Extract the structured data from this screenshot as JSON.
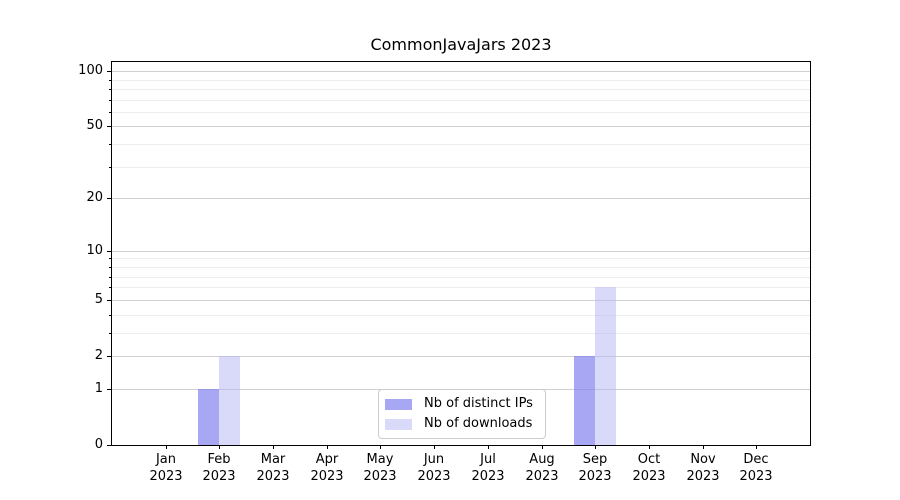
{
  "chart_data": {
    "type": "bar",
    "title": "CommonJavaJars 2023",
    "categories": [
      "Jan 2023",
      "Feb 2023",
      "Mar 2023",
      "Apr 2023",
      "May 2023",
      "Jun 2023",
      "Jul 2023",
      "Aug 2023",
      "Sep 2023",
      "Oct 2023",
      "Nov 2023",
      "Dec 2023"
    ],
    "series": [
      {
        "name": "Nb of distinct IPs",
        "color": "#8282f0b3",
        "values": [
          0,
          1,
          0,
          0,
          0,
          0,
          0,
          0,
          2,
          0,
          0,
          0
        ]
      },
      {
        "name": "Nb of downloads",
        "color": "#b4b4f580",
        "values": [
          0,
          2,
          0,
          0,
          0,
          0,
          0,
          0,
          6,
          0,
          0,
          0
        ]
      }
    ],
    "xlabel": "",
    "ylabel": "",
    "y_scale": "log1p",
    "ylim": [
      0,
      112
    ],
    "y_ticks_major": [
      0,
      1,
      2,
      5,
      10,
      20,
      50,
      100
    ],
    "y_ticks_minor": [
      3,
      4,
      6,
      7,
      8,
      9,
      30,
      40,
      60,
      70,
      80,
      90
    ],
    "grid": true,
    "legend_position": "lower center"
  },
  "colors": {
    "bar_distinct_ips": "#8282f0b3",
    "bar_downloads": "#b4b4f580",
    "grid_major": "#d0d0d0",
    "grid_minor": "#ececec",
    "axis": "#000000",
    "legend_border": "#cccccc",
    "text": "#000000"
  }
}
